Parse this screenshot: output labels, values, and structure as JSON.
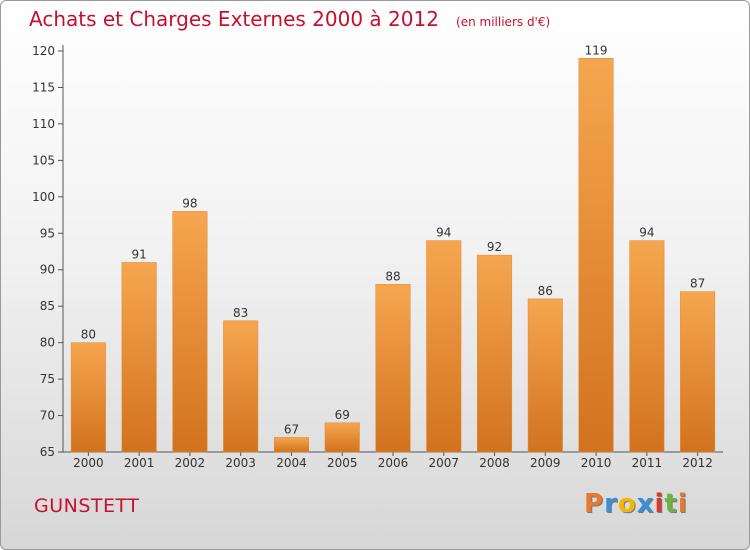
{
  "header": {
    "title": "Achats et Charges Externes 2000 à 2012",
    "subtitle": "(en milliers d'€)"
  },
  "footer": {
    "commune": "GUNSTETT",
    "logo_text": "Proxiti",
    "logo_colors": [
      "#e8792b",
      "#3a8fd6",
      "#f2b705",
      "#3a8fd6",
      "#d83a2f",
      "#6cb33f",
      "#e8792b"
    ]
  },
  "colors": {
    "title": "#c8102e",
    "bar_light": "#f6a650",
    "bar_dark": "#d2721e"
  },
  "chart_data": {
    "type": "bar",
    "categories": [
      "2000",
      "2001",
      "2002",
      "2003",
      "2004",
      "2005",
      "2006",
      "2007",
      "2008",
      "2009",
      "2010",
      "2011",
      "2012"
    ],
    "values": [
      80,
      91,
      98,
      83,
      67,
      69,
      88,
      94,
      92,
      86,
      119,
      94,
      87
    ],
    "ylim": [
      65,
      120
    ],
    "yticks": [
      65,
      70,
      75,
      80,
      85,
      90,
      95,
      100,
      105,
      110,
      115,
      120
    ],
    "grid": false,
    "legend": "none"
  }
}
